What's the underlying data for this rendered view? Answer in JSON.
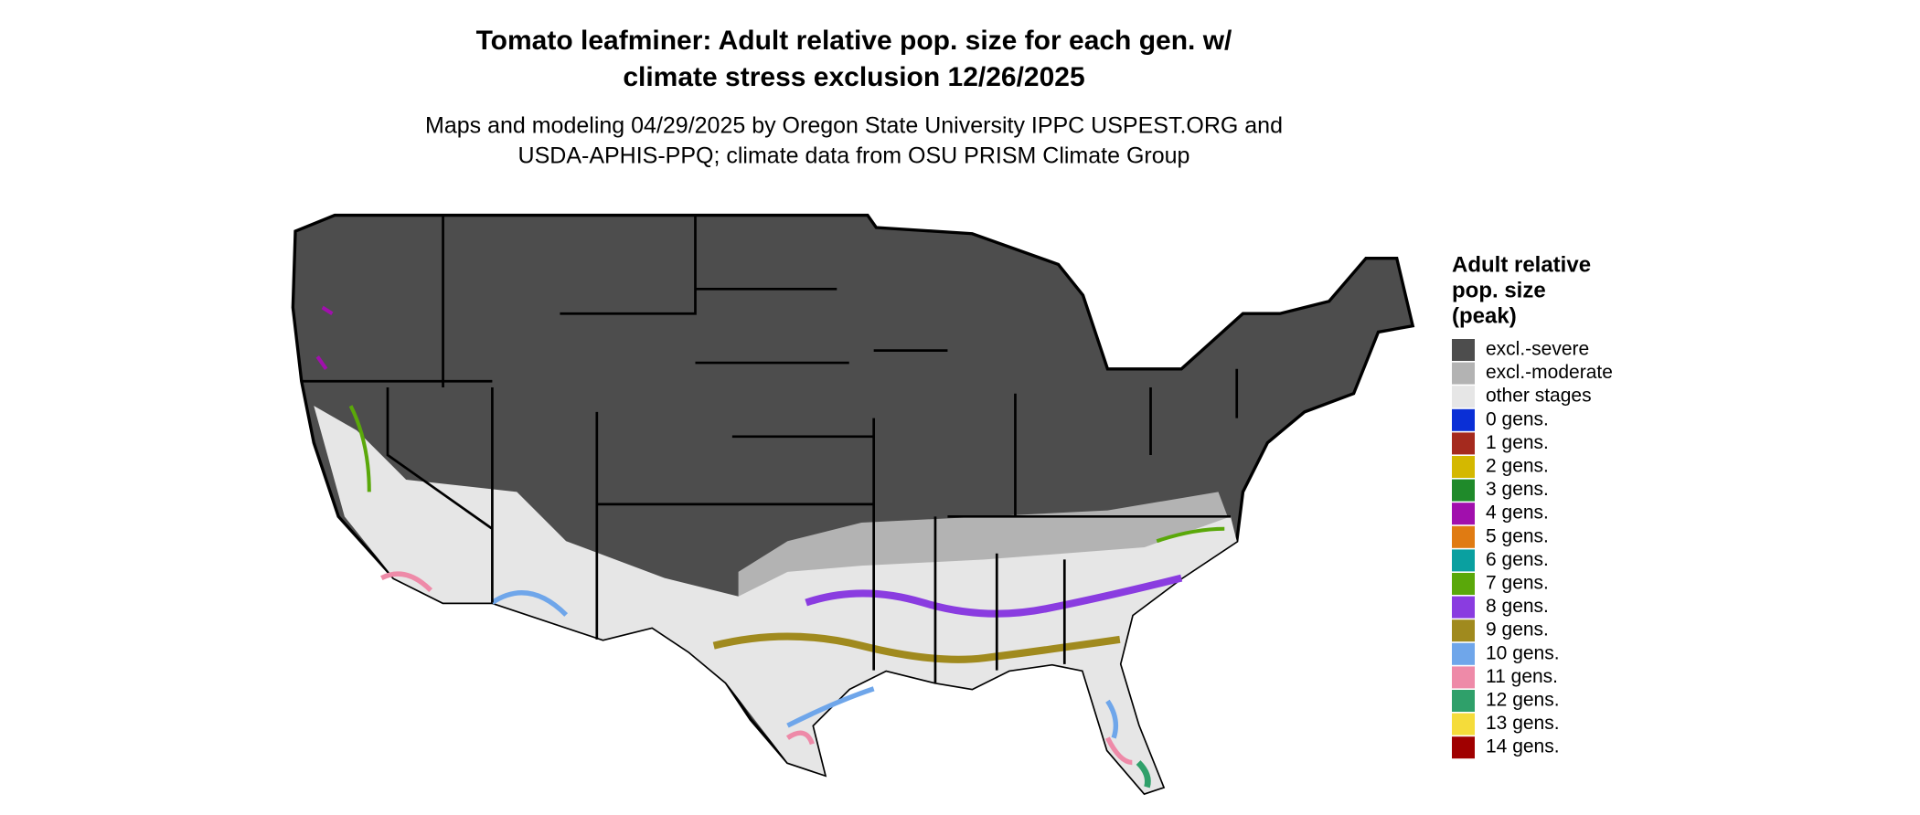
{
  "title": [
    "Tomato leafminer: Adult relative pop. size for each gen. w/",
    "climate stress exclusion 12/26/2025"
  ],
  "subtitle": [
    "Maps and modeling 04/29/2025 by Oregon State University IPPC USPEST.ORG and",
    "USDA-APHIS-PPQ; climate data from OSU PRISM Climate Group"
  ],
  "legend": {
    "title": [
      "Adult relative",
      "pop. size",
      "(peak)"
    ],
    "items": [
      {
        "label": "excl.-severe",
        "color": "#4d4d4d"
      },
      {
        "label": "excl.-moderate",
        "color": "#b3b3b3"
      },
      {
        "label": "other stages",
        "color": "#e6e6e6"
      },
      {
        "label": "0 gens.",
        "color": "#0a2fd6"
      },
      {
        "label": "1 gens.",
        "color": "#a52a1e"
      },
      {
        "label": "2 gens.",
        "color": "#d4b800"
      },
      {
        "label": "3 gens.",
        "color": "#1f8a2a"
      },
      {
        "label": "4 gens.",
        "color": "#a10fad"
      },
      {
        "label": "5 gens.",
        "color": "#e07b12"
      },
      {
        "label": "6 gens.",
        "color": "#0aa0a0"
      },
      {
        "label": "7 gens.",
        "color": "#5aa80a"
      },
      {
        "label": "8 gens.",
        "color": "#8a3ce0"
      },
      {
        "label": "9 gens.",
        "color": "#a08a1e"
      },
      {
        "label": "10 gens.",
        "color": "#6fa6ea"
      },
      {
        "label": "11 gens.",
        "color": "#ee8aa8"
      },
      {
        "label": "12 gens.",
        "color": "#2fa06a"
      },
      {
        "label": "13 gens.",
        "color": "#f5dc3a"
      },
      {
        "label": "14 gens.",
        "color": "#a00000"
      }
    ]
  }
}
